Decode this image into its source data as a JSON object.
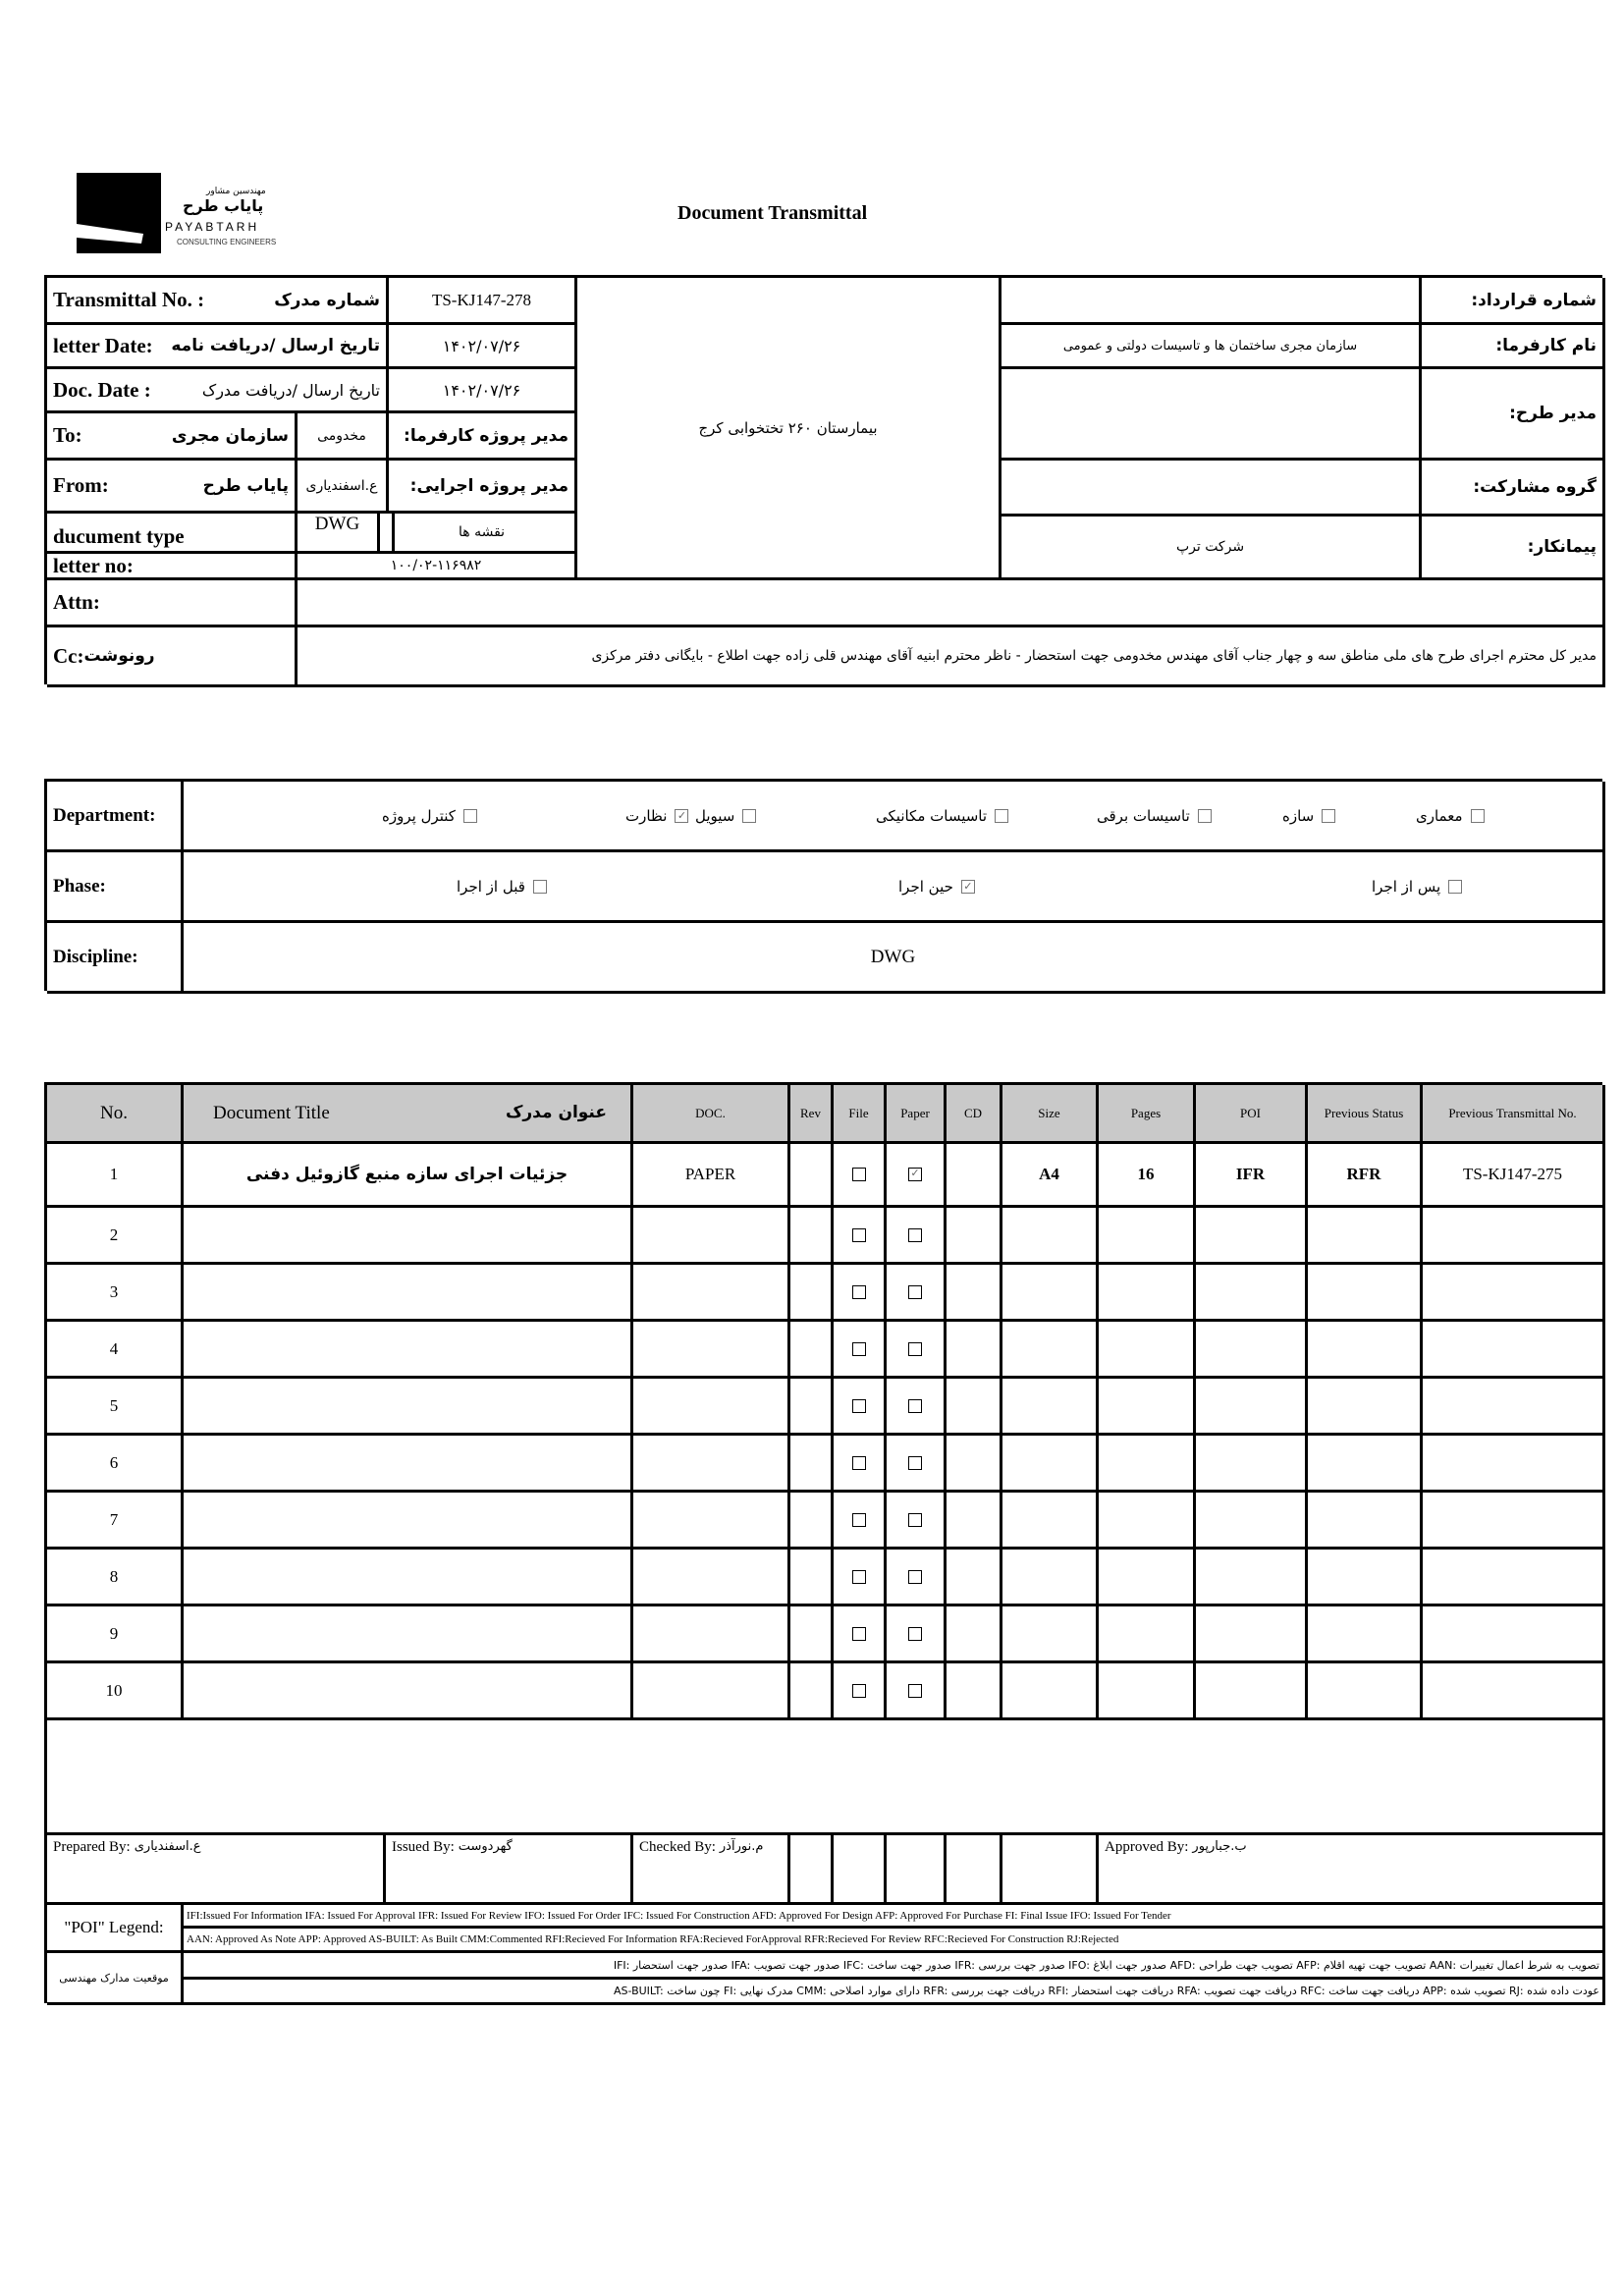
{
  "logo": {
    "fa_small": "مهندسین مشاور",
    "fa_name": "پایاب طرح",
    "en_name": "PAYABTARH",
    "en_sub": "CONSULTING ENGINEERS"
  },
  "title": "Document Transmittal",
  "header": {
    "transmittal_no_label": "Transmittal No. :",
    "transmittal_no_fa": "شماره مدرک",
    "transmittal_no": "TS-KJ147-278",
    "letter_date_label": "letter Date:",
    "letter_date_fa": "تاریخ ارسال /دریافت نامه",
    "letter_date": "۱۴۰۲/۰۷/۲۶",
    "doc_date_label": "Doc. Date :",
    "doc_date_fa": "تاریخ ارسال /دریافت مدرک",
    "doc_date": "۱۴۰۲/۰۷/۲۶",
    "to_label": "To:",
    "to_value": "سازمان مجری",
    "to_person": "مخدومی",
    "client_pm_label": "مدیر پروژه کارفرما:",
    "from_label": "From:",
    "from_value": "پایاب طرح",
    "from_person": "ع.اسفندیاری",
    "exec_pm_label": "مدیر پروژه اجرایی:",
    "doc_type_label": "ducument type",
    "doc_type": "DWG",
    "doc_type_fa": "نقشه ها",
    "letter_no_label": "letter no:",
    "letter_no": "۱۰۰/۰۲-۱۱۶۹۸۲",
    "project": "بیمارستان ۲۶۰ تختخوابی کرج",
    "contract_no_label": "شماره قرارداد:",
    "contract_no": "",
    "client_label": "نام کارفرما:",
    "client": "سازمان مجری ساختمان ها و تاسیسات دولتی و عمومی",
    "project_manager_label": "مدیر طرح:",
    "project_manager": "",
    "partnership_label": "گروه مشارکت:",
    "partnership": "",
    "contractor_label": "پیمانکار:",
    "contractor": "شرکت ترپ",
    "attn_label": "Attn:",
    "attn": "",
    "cc_label": "Cc:",
    "cc_fa": "رونوشت",
    "cc": "مدیر کل محترم اجرای طرح های ملی مناطق سه و چهار جناب آقای مهندس مخدومی جهت استحضار - ناظر محترم ابنیه آقای مهندس قلی زاده جهت اطلاع - بایگانی دفتر مرکزی"
  },
  "department": {
    "label": "Department:",
    "options": [
      {
        "label": "معماری",
        "checked": false
      },
      {
        "label": "سازه",
        "checked": false
      },
      {
        "label": "تاسیسات برقی",
        "checked": false
      },
      {
        "label": "تاسیسات مکانیکی",
        "checked": false
      },
      {
        "label": "سیویل",
        "checked": false
      },
      {
        "label": "نظارت",
        "checked": true
      },
      {
        "label": "کنترل پروژه",
        "checked": false
      }
    ]
  },
  "phase": {
    "label": "Phase:",
    "options": [
      {
        "label": "پس از اجرا",
        "checked": false
      },
      {
        "label": "حین اجرا",
        "checked": true
      },
      {
        "label": "قبل از اجرا",
        "checked": false
      }
    ]
  },
  "discipline": {
    "label": "Discipline:",
    "value": "DWG"
  },
  "table": {
    "headers": {
      "no": "No.",
      "title_en": "Document Title",
      "title_fa": "عنوان مدرک",
      "doc": "DOC.",
      "rev": "Rev",
      "file": "File",
      "paper": "Paper",
      "cd": "CD",
      "size": "Size",
      "pages": "Pages",
      "poi": "POI",
      "prev_status": "Previous Status",
      "prev_no": "Previous Transmittal No."
    },
    "rows": [
      {
        "no": "1",
        "title": "جزئیات اجرای سازه منبع گازوئیل دفنی",
        "doc": "PAPER",
        "rev": "",
        "file": false,
        "paper": true,
        "cd": "",
        "size": "A4",
        "pages": "16",
        "poi": "IFR",
        "prev_status": "RFR",
        "prev_no": "TS-KJ147-275"
      },
      {
        "no": "2",
        "file": false,
        "paper": false
      },
      {
        "no": "3",
        "file": false,
        "paper": false
      },
      {
        "no": "4",
        "file": false,
        "paper": false
      },
      {
        "no": "5",
        "file": false,
        "paper": false
      },
      {
        "no": "6",
        "file": false,
        "paper": false
      },
      {
        "no": "7",
        "file": false,
        "paper": false
      },
      {
        "no": "8",
        "file": false,
        "paper": false
      },
      {
        "no": "9",
        "file": false,
        "paper": false
      },
      {
        "no": "10",
        "file": false,
        "paper": false
      }
    ]
  },
  "signatures": {
    "prepared_label": "Prepared By:",
    "prepared": "ع.اسفندیاری",
    "issued_label": "Issued By:",
    "issued": "گهردوست",
    "checked_label": "Checked By:",
    "checked": "م.نورآذر",
    "approved_label": "Approved By:",
    "approved": "ب.جبارپور"
  },
  "legend": {
    "label": "\"POI\" Legend:",
    "line1": "IFI:Issued For Information  IFA: Issued For Approval  IFR: Issued For Review   IFO: Issued For Order  IFC: Issued For Construction AFD: Approved For Design AFP: Approved For Purchase  FI: Final Issue  IFO: Issued For Tender",
    "line2": "AAN: Approved As Note  APP: Approved  AS-BUILT: As Built CMM:Commented  RFI:Recieved For Information   RFA:Recieved ForApproval   RFR:Recieved For Review  RFC:Recieved For Construction  RJ:Rejected",
    "fa_label": "موقعیت مدارک مهندسی",
    "fa_line1": "IFI: صدور جهت استحضار   IFA: صدور جهت تصویب   IFC: صدور جهت ساخت   IFR: صدور جهت بررسی   IFO: صدور جهت ابلاغ   AFD: تصویب جهت طراحی   AFP: تصویب جهت تهیه اقلام   AAN: تصویب به شرط اعمال تغییرات",
    "fa_line2": "AS-BUILT: چون ساخت   FI: مدرک نهایی   CMM: دارای موارد اصلاحی   RFR: دریافت جهت بررسی   RFI: دریافت جهت استحضار   RFA: دریافت جهت تصویب   RFC: دریافت جهت ساخت   APP: تصویب شده   RJ: عودت داده شده"
  }
}
